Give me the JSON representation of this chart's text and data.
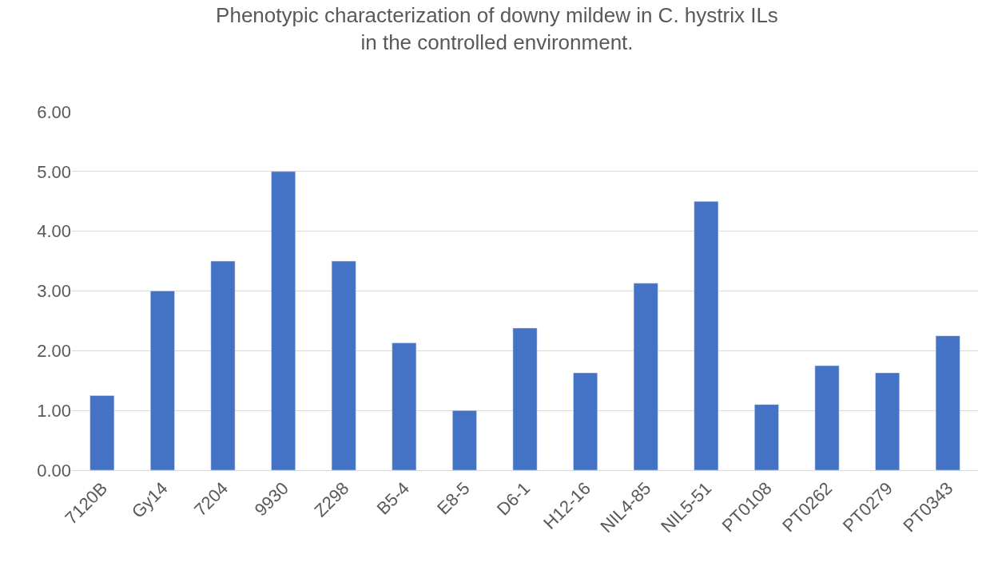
{
  "chart_data": {
    "type": "bar",
    "title": "Phenotypic characterization of downy mildew in C. hystrix ILs\nin the controlled environment.",
    "categories": [
      "7120B",
      "Gy14",
      "7204",
      "9930",
      "Z298",
      "B5-4",
      "E8-5",
      "D6-1",
      "H12-16",
      "NIL4-85",
      "NIL5-51",
      "PT0108",
      "PT0262",
      "PT0279",
      "PT0343"
    ],
    "values": [
      1.25,
      3.0,
      3.5,
      5.0,
      3.5,
      2.13,
      1.0,
      2.38,
      1.63,
      3.13,
      4.5,
      1.1,
      1.75,
      1.63,
      2.25
    ],
    "color": "#4472c4",
    "ylim": [
      0,
      6
    ],
    "yticks": [
      {
        "value": 0,
        "label": "0.00"
      },
      {
        "value": 1,
        "label": "1.00"
      },
      {
        "value": 2,
        "label": "2.00"
      },
      {
        "value": 3,
        "label": "3.00"
      },
      {
        "value": 4,
        "label": "4.00"
      },
      {
        "value": 5,
        "label": "5.00"
      },
      {
        "value": 6,
        "label": "6.00"
      }
    ],
    "grid": "y",
    "legend": false
  }
}
